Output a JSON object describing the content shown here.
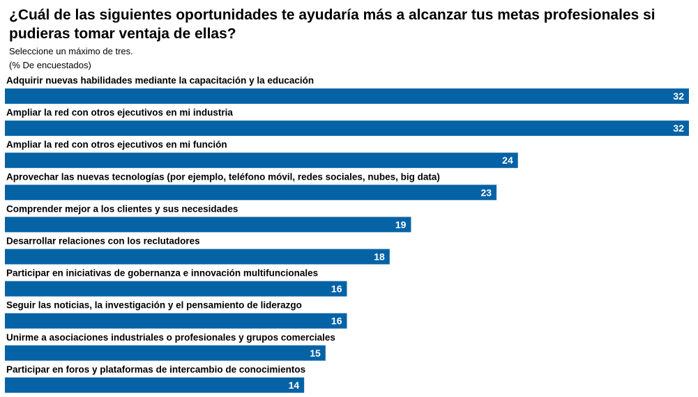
{
  "title": "¿Cuál de las siguientes oportunidades te ayudaría más a alcanzar tus metas profesionales si pudieras tomar ventaja de ellas?",
  "subtitle": "Seleccione un máximo de tres.",
  "unit_note": "(% De encuestados)",
  "colors": {
    "bar": "#0563A5",
    "value_text": "#ffffff"
  },
  "chart_data": {
    "type": "bar",
    "orientation": "horizontal",
    "title": "¿Cuál de las siguientes oportunidades te ayudaría más a alcanzar tus metas profesionales si pudieras tomar ventaja de ellas?",
    "categories": [
      "Adquirir nuevas habilidades mediante la capacitación y la educación",
      "Ampliar la red con otros ejecutivos en mi industria",
      "Ampliar la red con otros ejecutivos en mi función",
      "Aprovechar las nuevas tecnologías (por ejemplo, teléfono móvil, redes sociales, nubes, big data)",
      "Comprender mejor a los clientes y sus necesidades",
      "Desarrollar relaciones con los reclutadores",
      "Participar en iniciativas de gobernanza e innovación multifuncionales",
      "Seguir las noticias, la investigación y el pensamiento de liderazgo",
      "Unirme a asociaciones industriales o profesionales y grupos comerciales",
      "Participar en foros y plataformas de intercambio de conocimientos"
    ],
    "values": [
      32,
      32,
      24,
      23,
      19,
      18,
      16,
      16,
      15,
      14
    ],
    "xlim": [
      0,
      32
    ],
    "grid": false,
    "legend": false
  }
}
